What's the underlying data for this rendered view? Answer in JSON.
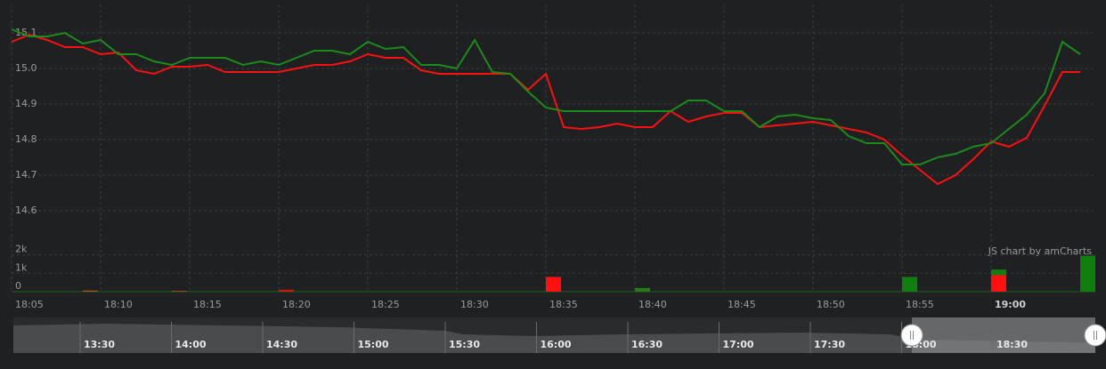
{
  "chart_data": {
    "type": "line",
    "x": [
      "18:05",
      "18:06",
      "18:07",
      "18:08",
      "18:09",
      "18:10",
      "18:11",
      "18:12",
      "18:13",
      "18:14",
      "18:15",
      "18:16",
      "18:17",
      "18:18",
      "18:19",
      "18:20",
      "18:21",
      "18:22",
      "18:23",
      "18:24",
      "18:25",
      "18:26",
      "18:27",
      "18:28",
      "18:29",
      "18:30",
      "18:31",
      "18:32",
      "18:33",
      "18:34",
      "18:35",
      "18:36",
      "18:37",
      "18:38",
      "18:39",
      "18:40",
      "18:41",
      "18:42",
      "18:43",
      "18:44",
      "18:45",
      "18:46",
      "18:47",
      "18:48",
      "18:49",
      "18:50",
      "18:51",
      "18:52",
      "18:53",
      "18:54",
      "18:55",
      "18:56",
      "18:57",
      "18:58",
      "18:59",
      "19:00",
      "19:01",
      "19:02",
      "19:03",
      "19:04",
      "19:05"
    ],
    "series": [
      {
        "color": "#ff0f0f",
        "values": [
          15.075,
          15.095,
          15.08,
          15.06,
          15.06,
          15.04,
          15.045,
          14.995,
          14.985,
          15.005,
          15.005,
          15.01,
          14.99,
          14.99,
          14.99,
          14.99,
          15.0,
          15.01,
          15.01,
          15.02,
          15.04,
          15.03,
          15.03,
          14.995,
          14.985,
          14.985,
          14.985,
          14.985,
          14.985,
          14.94,
          14.985,
          14.835,
          14.83,
          14.835,
          14.845,
          14.835,
          14.835,
          14.88,
          14.85,
          14.865,
          14.875,
          14.875,
          14.835,
          14.84,
          14.845,
          14.85,
          14.84,
          14.83,
          14.82,
          14.8,
          14.755,
          14.715,
          14.675,
          14.7,
          14.745,
          14.795,
          14.78,
          14.805,
          14.895,
          14.99,
          14.99
        ]
      },
      {
        "color": "#1a8c1a",
        "values": [
          15.11,
          15.09,
          15.09,
          15.1,
          15.07,
          15.08,
          15.04,
          15.04,
          15.02,
          15.01,
          15.03,
          15.03,
          15.03,
          15.01,
          15.02,
          15.01,
          15.03,
          15.05,
          15.05,
          15.04,
          15.075,
          15.055,
          15.06,
          15.01,
          15.01,
          15.0,
          15.08,
          14.99,
          14.985,
          14.935,
          14.89,
          14.88,
          14.88,
          14.88,
          14.88,
          14.88,
          14.88,
          14.88,
          14.91,
          14.91,
          14.88,
          14.88,
          14.835,
          14.865,
          14.87,
          14.86,
          14.855,
          14.81,
          14.79,
          14.79,
          14.73,
          14.73,
          14.75,
          14.76,
          14.78,
          14.79,
          14.83,
          14.87,
          14.93,
          15.075,
          15.04
        ]
      }
    ],
    "ylim": [
      14.55,
      15.17
    ],
    "yticks": [
      14.6,
      14.7,
      14.8,
      14.9,
      {
        "value": 15,
        "label": "15.0"
      },
      15.1
    ],
    "xticks": [
      "18:05",
      "18:10",
      "18:15",
      "18:20",
      "18:25",
      "18:30",
      "18:35",
      "18:40",
      "18:45",
      "18:50",
      "18:55",
      "19:00"
    ],
    "volume": {
      "ylim": [
        0,
        2900
      ],
      "yticks": [
        0,
        {
          "value": 1000,
          "label": "1k"
        },
        {
          "value": 2000,
          "label": "2k"
        }
      ],
      "bars": [
        {
          "x": "18:09",
          "value": 60,
          "color": "#b5502a"
        },
        {
          "x": "18:14",
          "value": 40,
          "color": "#b5502a"
        },
        {
          "x": "18:20",
          "value": 100,
          "color": "#e01010"
        },
        {
          "x": "18:35",
          "value": 800,
          "color": "#ff0f0f"
        },
        {
          "x": "18:40",
          "value": 200,
          "color": "#2a7a1a"
        },
        {
          "x": "18:55",
          "value": 800,
          "color": "#0f800f"
        },
        {
          "x": "19:00",
          "value": 1200,
          "color": "#0f800f"
        },
        {
          "x": "19:00",
          "value": 900,
          "color": "#ff0f0f"
        },
        {
          "x": "19:05",
          "value": 1950,
          "color": "#0f800f"
        }
      ]
    },
    "credit": "JS chart by amCharts",
    "navigator": {
      "labels": [
        "13:30",
        "14:00",
        "14:30",
        "15:00",
        "15:30",
        "16:00",
        "16:30",
        "17:00",
        "17:30",
        "18:00",
        "18:30"
      ]
    }
  }
}
